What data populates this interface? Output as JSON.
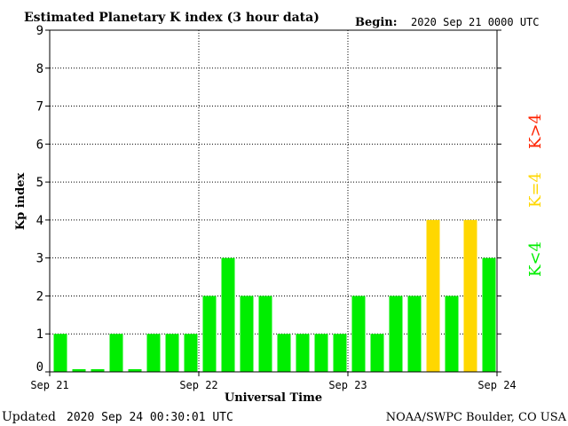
{
  "chart_data": {
    "type": "bar",
    "title": "Estimated Planetary K index (3 hour data)",
    "begin_label": "Begin:",
    "begin_value": "2020 Sep 21 0000 UTC",
    "xlabel": "Universal Time",
    "ylabel": "Kp index",
    "ylim": [
      0,
      9
    ],
    "yticks": [
      "0",
      "1",
      "2",
      "3",
      "4",
      "5",
      "6",
      "7",
      "8",
      "9"
    ],
    "xticks": [
      "Sep 21",
      "Sep 22",
      "Sep 23",
      "Sep 24"
    ],
    "values": [
      1,
      0,
      0,
      1,
      0,
      1,
      1,
      1,
      2,
      3,
      2,
      2,
      1,
      1,
      1,
      1,
      2,
      1,
      2,
      2,
      4,
      2,
      4,
      3
    ],
    "grid": true,
    "legend": [
      {
        "label": "K<4",
        "color": "#00ee00"
      },
      {
        "label": "K=4",
        "color": "#ffd700"
      },
      {
        "label": "K>4",
        "color": "#ff2200"
      }
    ],
    "colors": {
      "below": "#00ee00",
      "equal": "#ffd700",
      "above": "#ff2200"
    }
  },
  "footer": {
    "updated_label": "Updated",
    "updated_value": "2020 Sep 24 00:30:01 UTC",
    "source": "NOAA/SWPC Boulder, CO USA"
  }
}
